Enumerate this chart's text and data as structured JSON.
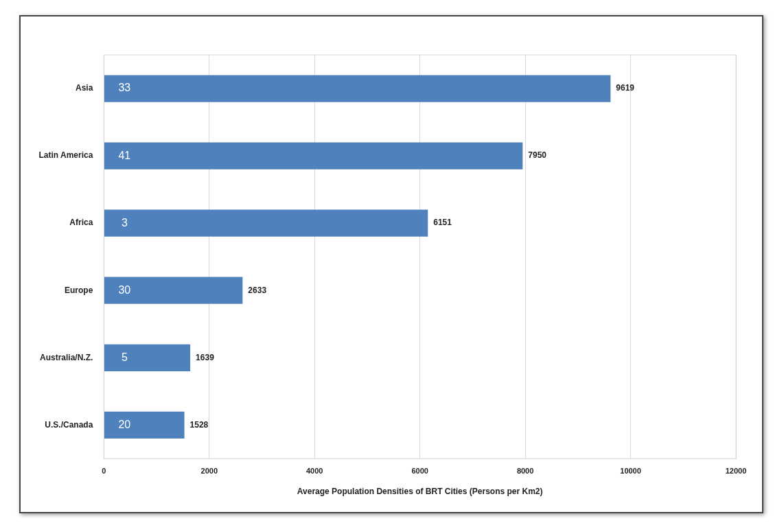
{
  "chart_data": {
    "type": "bar",
    "orientation": "horizontal",
    "xlabel": "Average Population Densities of BRT Cities (Persons per Km2)",
    "categories": [
      "Asia",
      "Latin America",
      "Africa",
      "Europe",
      "Australia/N.Z.",
      "U.S./Canada"
    ],
    "values": [
      9619,
      7950,
      6151,
      2633,
      1639,
      1528
    ],
    "color": "#4f81bd",
    "xlim": [
      0,
      12000
    ],
    "xticks": [
      0,
      2000,
      4000,
      6000,
      8000,
      10000,
      12000
    ],
    "grid": "x",
    "data_labels": true,
    "annotations": [
      "33",
      "41",
      "3",
      "30",
      "5",
      "20"
    ]
  }
}
